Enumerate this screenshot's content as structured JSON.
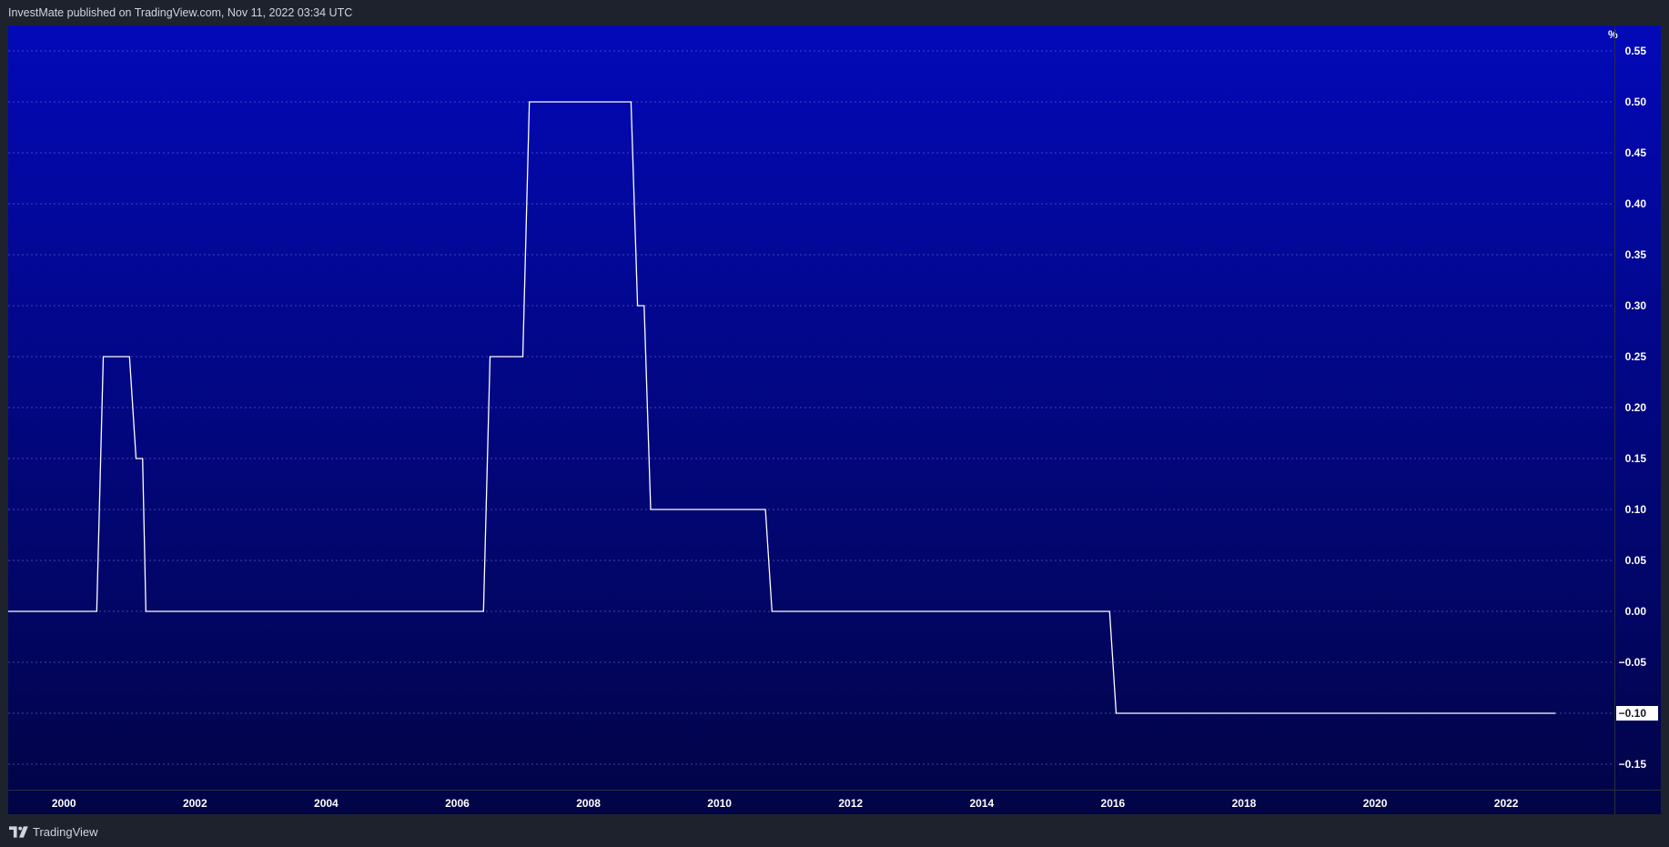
{
  "header": {
    "published_text": "InvestMate published on TradingView.com, Nov 11, 2022 03:34 UTC"
  },
  "footer": {
    "brand_name": "TradingView",
    "brand_icon": "tradingview-logo-icon"
  },
  "colors": {
    "bg_top": "#0309b8",
    "bg_bottom": "#020446",
    "line": "#ffffff",
    "grid": "#5a62c8",
    "frame": "#1e222d"
  },
  "chart_data": {
    "type": "line",
    "title": "",
    "xlabel": "",
    "ylabel": "%",
    "x_ticks": [
      "2000",
      "2002",
      "2004",
      "2006",
      "2008",
      "2010",
      "2012",
      "2014",
      "2016",
      "2018",
      "2020",
      "2022"
    ],
    "y_ticks": [
      "0.55",
      "0.50",
      "0.45",
      "0.40",
      "0.35",
      "0.30",
      "0.25",
      "0.20",
      "0.15",
      "0.10",
      "0.05",
      "0.00",
      "−0.05",
      "−0.10",
      "−0.15"
    ],
    "last_value_label": "−0.10",
    "xlim": [
      1999.15,
      2023.65
    ],
    "ylim": [
      -0.175,
      0.575
    ],
    "grid": true,
    "series": [
      {
        "values": [
          {
            "x": 1999.15,
            "y": 0.0
          },
          {
            "x": 2000.5,
            "y": 0.0
          },
          {
            "x": 2000.6,
            "y": 0.25
          },
          {
            "x": 2001.0,
            "y": 0.25
          },
          {
            "x": 2001.1,
            "y": 0.15
          },
          {
            "x": 2001.2,
            "y": 0.15
          },
          {
            "x": 2001.25,
            "y": 0.0
          },
          {
            "x": 2006.4,
            "y": 0.0
          },
          {
            "x": 2006.5,
            "y": 0.25
          },
          {
            "x": 2007.0,
            "y": 0.25
          },
          {
            "x": 2007.1,
            "y": 0.5
          },
          {
            "x": 2008.65,
            "y": 0.5
          },
          {
            "x": 2008.75,
            "y": 0.3
          },
          {
            "x": 2008.85,
            "y": 0.3
          },
          {
            "x": 2008.95,
            "y": 0.1
          },
          {
            "x": 2010.7,
            "y": 0.1
          },
          {
            "x": 2010.8,
            "y": 0.0
          },
          {
            "x": 2015.95,
            "y": 0.0
          },
          {
            "x": 2016.05,
            "y": -0.1
          },
          {
            "x": 2022.75,
            "y": -0.1
          }
        ]
      }
    ]
  }
}
